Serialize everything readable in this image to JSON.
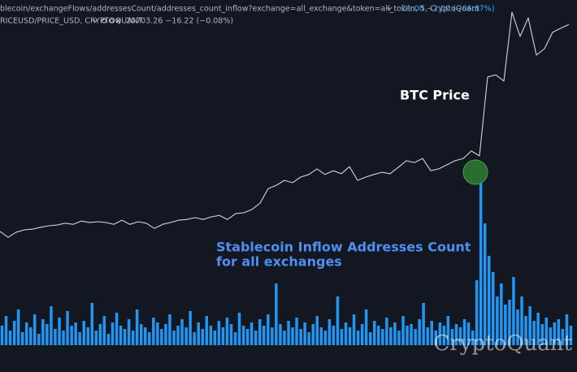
{
  "chart_data": {
    "type": "line",
    "header": {
      "source": "blecoin/exchangeFlows/addressesCount/addresses_count_inflow?exchange=all_exchange&token=all_token, 5, CryptoQuant",
      "ohlc": "C1.00  −2.00 (−66.67%)",
      "symbol": "RICEUSD/PRICE_USD, CRYPTOQUANT",
      "price": "20703.26  −16.22 (−0.08%)"
    },
    "series": [
      {
        "name": "BTC Price",
        "type": "line",
        "color": "#d1d4dc",
        "values": [
          37.8,
          36.2,
          37.6,
          38.2,
          38.4,
          38.9,
          39.3,
          39.5,
          40.0,
          39.7,
          40.6,
          40.2,
          40.4,
          40.2,
          39.7,
          40.8,
          39.7,
          40.4,
          40.0,
          38.6,
          39.7,
          40.2,
          40.8,
          41.0,
          41.5,
          41.0,
          41.7,
          42.1,
          41.0,
          42.6,
          42.8,
          43.7,
          45.4,
          49.3,
          50.2,
          51.5,
          50.9,
          52.4,
          53.1,
          54.6,
          53.1,
          54.1,
          53.3,
          55.2,
          51.5,
          52.4,
          53.1,
          53.7,
          53.3,
          55.0,
          56.8,
          56.3,
          57.4,
          54.1,
          54.6,
          55.7,
          56.8,
          57.4,
          59.4,
          58.1,
          79.3,
          79.9,
          78.2,
          96.7,
          90.2,
          95.2,
          85.2,
          86.9,
          91.3,
          92.4,
          93.4
        ]
      },
      {
        "name": "Stablecoin Inflow Addresses Count",
        "type": "bar",
        "axis": "y2",
        "color": "#2196f3",
        "values": [
          12,
          18,
          9,
          15,
          22,
          8,
          14,
          11,
          19,
          7,
          16,
          13,
          24,
          10,
          17,
          9,
          21,
          12,
          14,
          8,
          15,
          11,
          26,
          9,
          13,
          18,
          7,
          14,
          20,
          12,
          10,
          16,
          9,
          22,
          13,
          11,
          8,
          17,
          14,
          10,
          13,
          19,
          9,
          12,
          16,
          11,
          21,
          8,
          14,
          10,
          18,
          12,
          9,
          15,
          11,
          17,
          13,
          8,
          20,
          12,
          10,
          14,
          9,
          16,
          12,
          19,
          11,
          38,
          13,
          9,
          15,
          11,
          17,
          10,
          14,
          8,
          13,
          18,
          11,
          9,
          16,
          12,
          30,
          10,
          14,
          11,
          19,
          9,
          13,
          22,
          8,
          15,
          12,
          10,
          17,
          11,
          14,
          9,
          18,
          12,
          13,
          10,
          16,
          26,
          11,
          15,
          9,
          14,
          12,
          18,
          10,
          13,
          11,
          16,
          14,
          9,
          40,
          100,
          75,
          55,
          45,
          30,
          38,
          25,
          28,
          42,
          22,
          30,
          18,
          24,
          15,
          20,
          13,
          17,
          11,
          14,
          16,
          10,
          19,
          12
        ]
      }
    ],
    "annotations": [
      "for all exchanges"
    ],
    "watermark": "CryptoQuant",
    "ylim": [
      0,
      100
    ],
    "y2lim": [
      0,
      100
    ]
  }
}
